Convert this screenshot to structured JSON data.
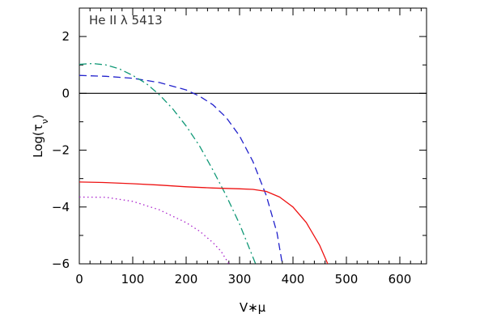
{
  "chart_data": {
    "type": "line",
    "title": "",
    "annotation": "He II λ 5413",
    "xlabel": "V*μ",
    "ylabel": "Log(τν)",
    "xlim": [
      0,
      650
    ],
    "ylim": [
      -6,
      3
    ],
    "xticks": [
      0,
      100,
      200,
      300,
      400,
      500,
      600
    ],
    "yticks": [
      -6,
      -4,
      -2,
      0,
      2
    ],
    "grid": false,
    "reference_line": {
      "y": 0,
      "color": "#000000"
    },
    "series": [
      {
        "color": "#2222cc",
        "dash": "dashed",
        "x": [
          0,
          50,
          100,
          150,
          200,
          225,
          250,
          275,
          300,
          325,
          350,
          370,
          380
        ],
        "y": [
          0.63,
          0.6,
          0.53,
          0.38,
          0.12,
          -0.1,
          -0.4,
          -0.85,
          -1.5,
          -2.4,
          -3.6,
          -4.9,
          -6.0
        ]
      },
      {
        "color": "#119977",
        "dash": "dashdot",
        "x": [
          0,
          25,
          50,
          75,
          100,
          125,
          150,
          175,
          200,
          225,
          250,
          275,
          300,
          315,
          330
        ],
        "y": [
          1.02,
          1.05,
          1.0,
          0.86,
          0.63,
          0.35,
          -0.05,
          -0.55,
          -1.15,
          -1.85,
          -2.7,
          -3.6,
          -4.6,
          -5.3,
          -6.0
        ]
      },
      {
        "color": "#ee1111",
        "dash": "solid",
        "x": [
          0,
          50,
          100,
          150,
          200,
          250,
          300,
          325,
          350,
          375,
          400,
          425,
          450,
          465
        ],
        "y": [
          -3.12,
          -3.14,
          -3.18,
          -3.23,
          -3.29,
          -3.33,
          -3.36,
          -3.38,
          -3.45,
          -3.65,
          -4.0,
          -4.55,
          -5.35,
          -6.0
        ]
      },
      {
        "color": "#aa22cc",
        "dash": "dotted",
        "x": [
          0,
          50,
          100,
          150,
          200,
          225,
          250,
          265,
          280
        ],
        "y": [
          -3.65,
          -3.66,
          -3.8,
          -4.1,
          -4.55,
          -4.85,
          -5.25,
          -5.55,
          -6.0
        ]
      }
    ]
  }
}
